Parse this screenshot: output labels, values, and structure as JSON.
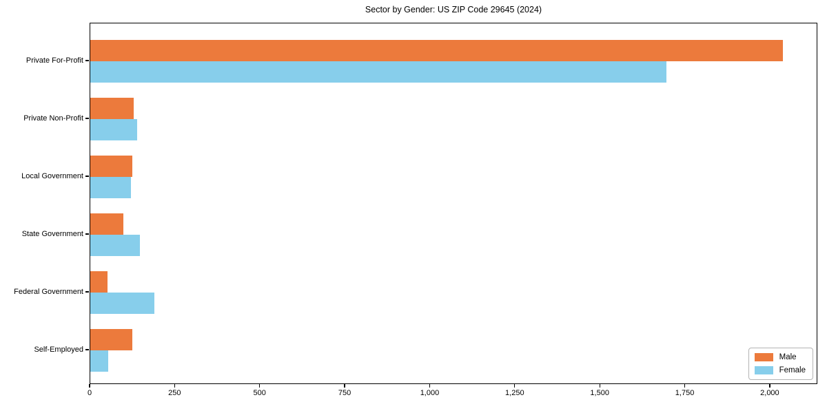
{
  "chart_data": {
    "type": "bar",
    "orientation": "horizontal",
    "title": "Sector by Gender: US ZIP Code 29645 (2024)",
    "categories": [
      "Private For-Profit",
      "Private Non-Profit",
      "Local Government",
      "State Government",
      "Federal Government",
      "Self-Employed"
    ],
    "series": [
      {
        "name": "Male",
        "color": "#EC7A3C",
        "values": [
          2037,
          128,
          123,
          98,
          51,
          123
        ]
      },
      {
        "name": "Female",
        "color": "#87CEEB",
        "values": [
          1694,
          138,
          119,
          145,
          189,
          53
        ]
      }
    ],
    "xlabel": "",
    "ylabel": "",
    "xlim": [
      0,
      2140
    ],
    "xticks": [
      0,
      250,
      500,
      750,
      1000,
      1250,
      1500,
      1750,
      2000
    ],
    "xtick_labels": [
      "0",
      "250",
      "500",
      "750",
      "1,000",
      "1,250",
      "1,500",
      "1,750",
      "2,000"
    ],
    "grid": false,
    "legend_position": "lower right"
  },
  "legend": {
    "entries": [
      {
        "label": "Male",
        "color": "#EC7A3C"
      },
      {
        "label": "Female",
        "color": "#87CEEB"
      }
    ]
  }
}
